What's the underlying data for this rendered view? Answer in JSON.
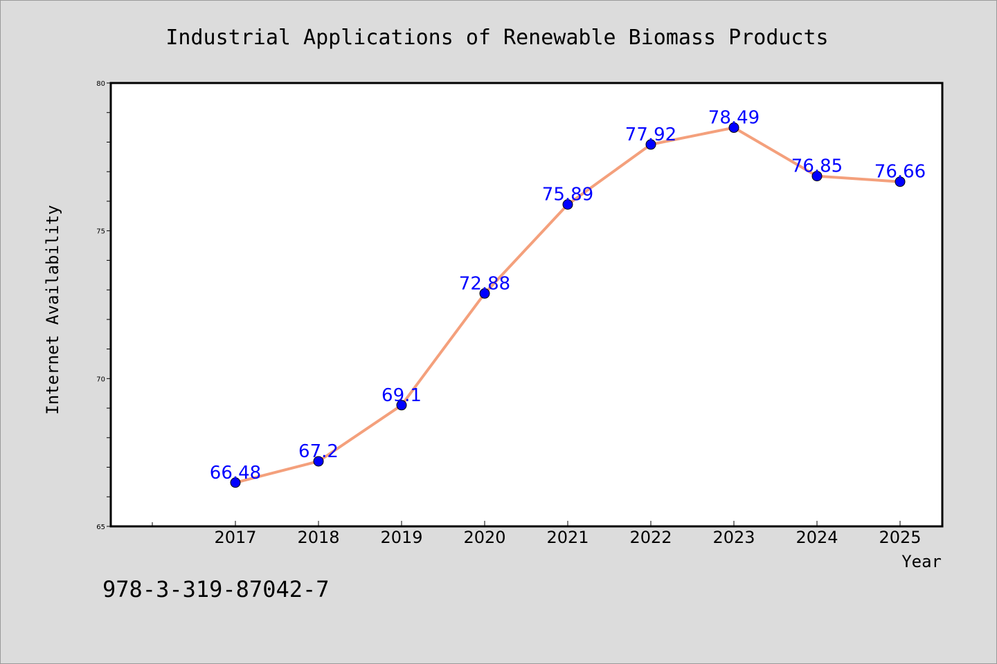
{
  "chart_data": {
    "type": "line",
    "title": "Industrial Applications of Renewable Biomass Products",
    "xlabel": "Year",
    "ylabel": "Internet Availability",
    "categories": [
      "2017",
      "2018",
      "2019",
      "2020",
      "2021",
      "2022",
      "2023",
      "2024",
      "2025"
    ],
    "values": [
      66.48,
      67.2,
      69.1,
      72.88,
      75.89,
      77.92,
      78.49,
      76.85,
      76.66
    ],
    "data_labels": [
      "66.48",
      "67.2",
      "69.1",
      "72.88",
      "75.89",
      "77.92",
      "78.49",
      "76.85",
      "76.66"
    ],
    "ylim": [
      65,
      80
    ],
    "yticks": [
      65,
      70,
      75,
      80
    ],
    "ytick_labels": [
      "65",
      "70",
      "75",
      "80"
    ],
    "grid": false,
    "legend": "none",
    "colors": {
      "line": "#f4a07c",
      "marker": "#0000ff",
      "data_label": "#0000ff",
      "background": "#dcdcdc",
      "plot_background": "#ffffff"
    }
  },
  "footer": {
    "code": "978-3-319-87042-7"
  }
}
